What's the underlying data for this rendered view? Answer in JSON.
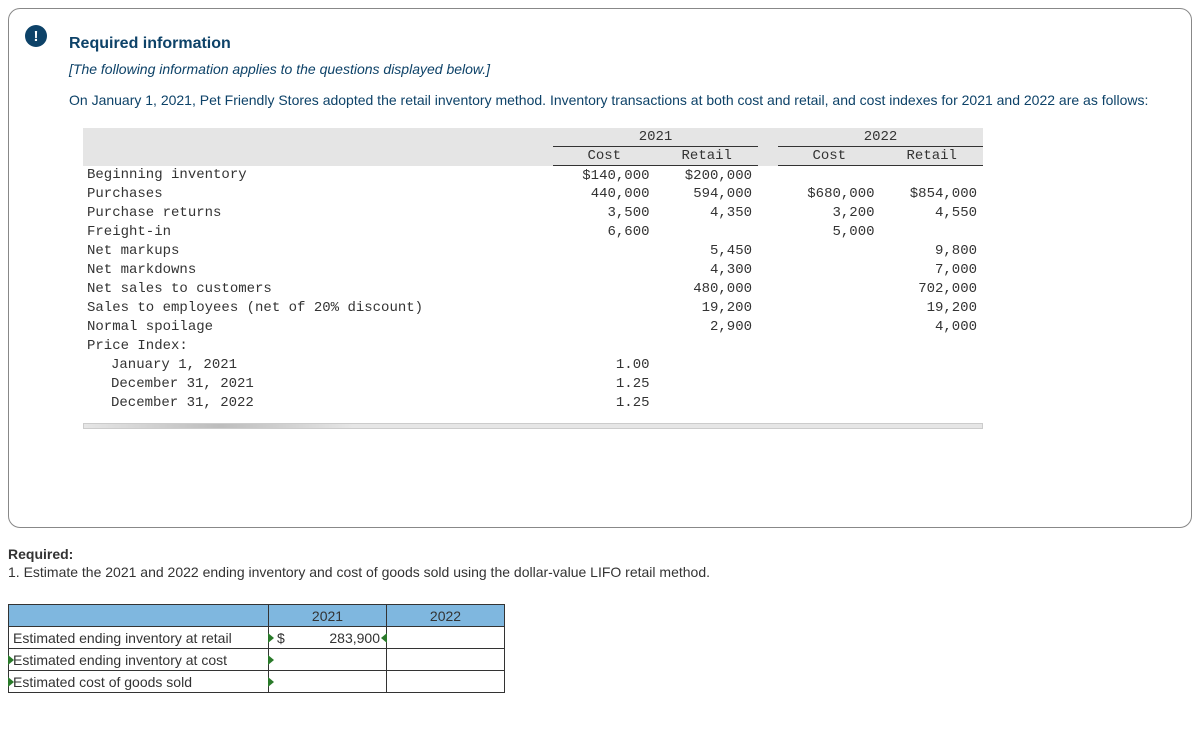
{
  "alert_symbol": "!",
  "section_heading": "Required information",
  "italic_note": "[The following information applies to the questions displayed below.]",
  "problem_text": "On January 1, 2021, Pet Friendly Stores adopted the retail inventory method. Inventory transactions at both cost and retail, and cost indexes for 2021 and 2022 are as follows:",
  "table": {
    "year1": "2021",
    "year2": "2022",
    "col_cost": "Cost",
    "col_retail": "Retail",
    "rows": {
      "r1": {
        "label": "Beginning inventory",
        "c1": "$140,000",
        "r1": "$200,000",
        "c2": "",
        "r2": ""
      },
      "r2": {
        "label": "Purchases",
        "c1": "440,000",
        "r1": "594,000",
        "c2": "$680,000",
        "r2": "$854,000"
      },
      "r3": {
        "label": "Purchase returns",
        "c1": "3,500",
        "r1": "4,350",
        "c2": "3,200",
        "r2": "4,550"
      },
      "r4": {
        "label": "Freight-in",
        "c1": "6,600",
        "r1": "",
        "c2": "5,000",
        "r2": ""
      },
      "r5": {
        "label": "Net markups",
        "c1": "",
        "r1": "5,450",
        "c2": "",
        "r2": "9,800"
      },
      "r6": {
        "label": "Net markdowns",
        "c1": "",
        "r1": "4,300",
        "c2": "",
        "r2": "7,000"
      },
      "r7": {
        "label": "Net sales to customers",
        "c1": "",
        "r1": "480,000",
        "c2": "",
        "r2": "702,000"
      },
      "r8": {
        "label": "Sales to employees (net of 20% discount)",
        "c1": "",
        "r1": "19,200",
        "c2": "",
        "r2": "19,200"
      },
      "r9": {
        "label": "Normal spoilage",
        "c1": "",
        "r1": "2,900",
        "c2": "",
        "r2": "4,000"
      },
      "r10": {
        "label": "Price Index:",
        "c1": "",
        "r1": "",
        "c2": "",
        "r2": ""
      },
      "r11": {
        "label": "January 1, 2021",
        "c1": "1.00",
        "r1": "",
        "c2": "",
        "r2": ""
      },
      "r12": {
        "label": "December 31, 2021",
        "c1": "1.25",
        "r1": "",
        "c2": "",
        "r2": ""
      },
      "r13": {
        "label": "December 31, 2022",
        "c1": "1.25",
        "r1": "",
        "c2": "",
        "r2": ""
      }
    }
  },
  "required_heading": "Required:",
  "required_item": "1. Estimate the 2021 and 2022 ending inventory and cost of goods sold using the dollar-value LIFO retail method.",
  "answer": {
    "col1": "2021",
    "col2": "2022",
    "rows": {
      "a1": {
        "label": "Estimated ending inventory at retail",
        "v1_prefix": "$",
        "v1": "283,900",
        "v2": ""
      },
      "a2": {
        "label": "Estimated ending inventory at cost",
        "v1_prefix": "",
        "v1": "",
        "v2": ""
      },
      "a3": {
        "label": "Estimated cost of goods sold",
        "v1_prefix": "",
        "v1": "",
        "v2": ""
      }
    }
  }
}
